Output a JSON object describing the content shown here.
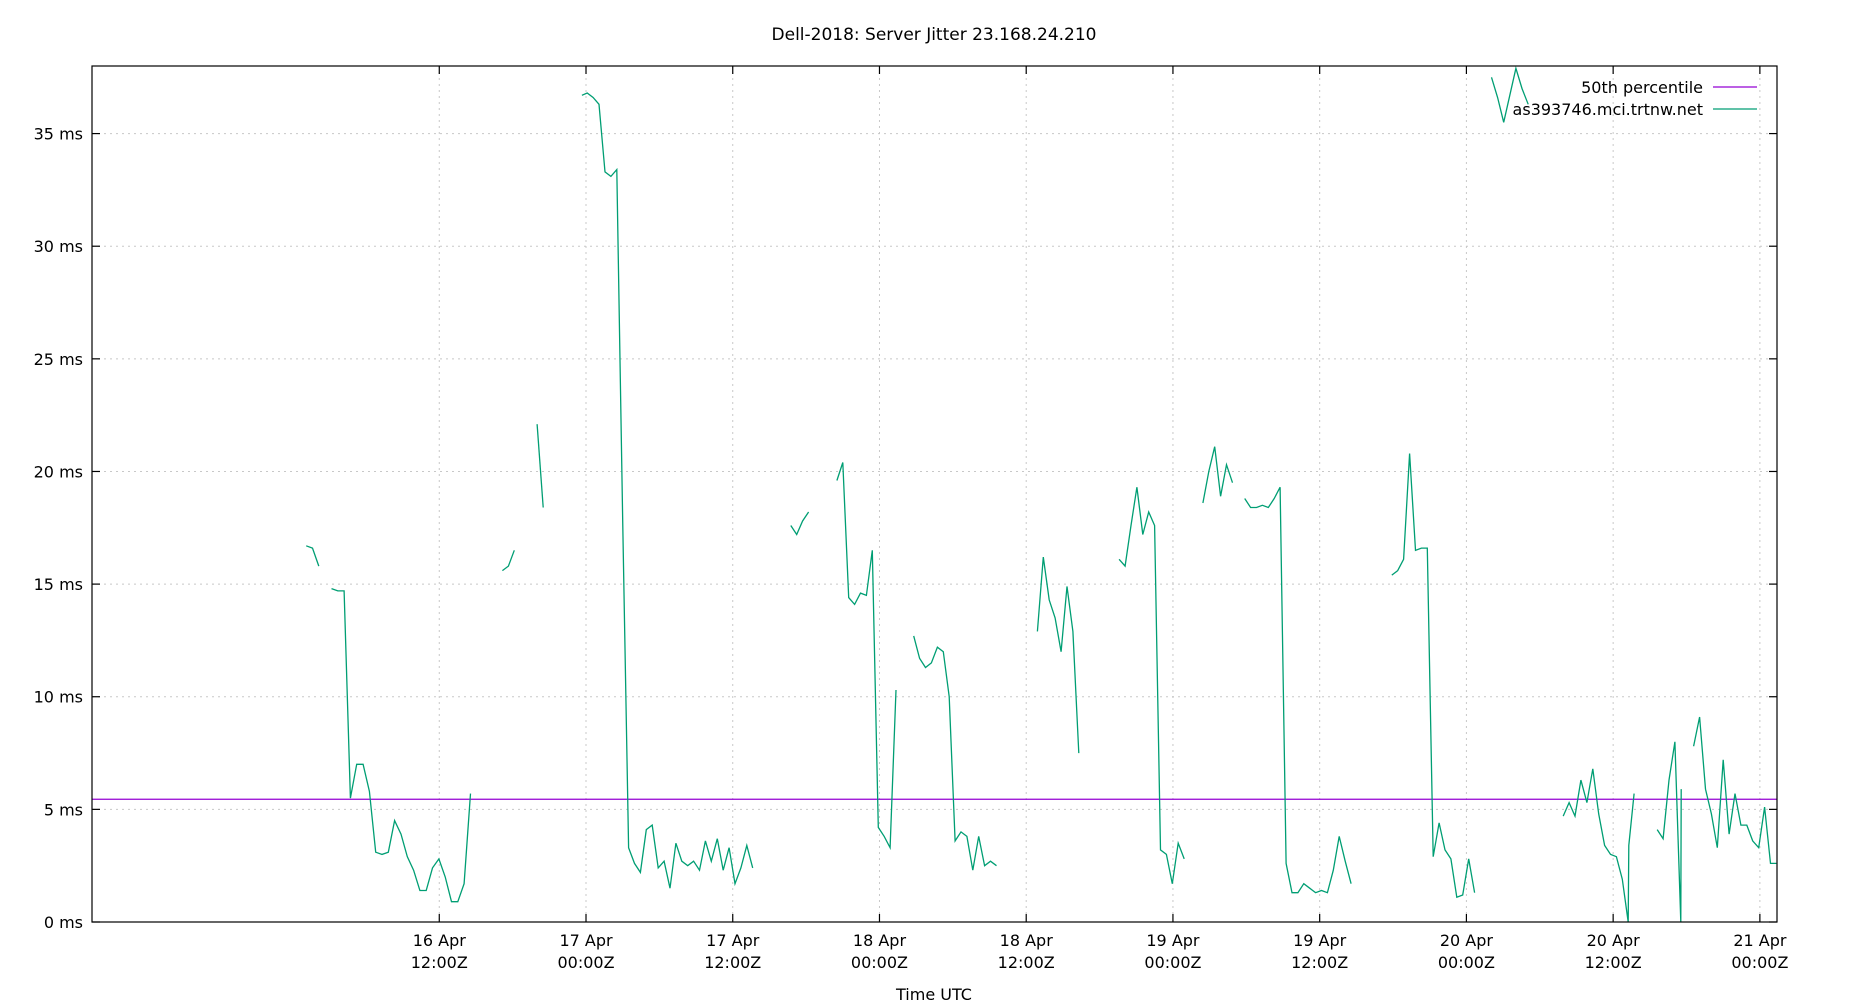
{
  "chart_data": {
    "type": "line",
    "title": "Dell-2018: Server Jitter 23.168.24.210",
    "xlabel": "Time UTC",
    "ylabel": "",
    "ylim": [
      0,
      38
    ],
    "xlim": [
      "2026-04-15 07:36Z",
      "2026-04-21 01:24Z"
    ],
    "grid": true,
    "legend_position": "top-right",
    "y_ticks": [
      {
        "value": 0,
        "label": "0 ms"
      },
      {
        "value": 5,
        "label": "5 ms"
      },
      {
        "value": 10,
        "label": "10 ms"
      },
      {
        "value": 15,
        "label": "15 ms"
      },
      {
        "value": 20,
        "label": "20 ms"
      },
      {
        "value": 25,
        "label": "25 ms"
      },
      {
        "value": 30,
        "label": "30 ms"
      },
      {
        "value": 35,
        "label": "35 ms"
      }
    ],
    "x_ticks": [
      {
        "value": "2026-04-16 12:00Z",
        "line1": "16 Apr",
        "line2": "12:00Z"
      },
      {
        "value": "2026-04-17 00:00Z",
        "line1": "17 Apr",
        "line2": "00:00Z"
      },
      {
        "value": "2026-04-17 12:00Z",
        "line1": "17 Apr",
        "line2": "12:00Z"
      },
      {
        "value": "2026-04-18 00:00Z",
        "line1": "18 Apr",
        "line2": "00:00Z"
      },
      {
        "value": "2026-04-18 12:00Z",
        "line1": "18 Apr",
        "line2": "12:00Z"
      },
      {
        "value": "2026-04-19 00:00Z",
        "line1": "19 Apr",
        "line2": "00:00Z"
      },
      {
        "value": "2026-04-19 12:00Z",
        "line1": "19 Apr",
        "line2": "12:00Z"
      },
      {
        "value": "2026-04-20 00:00Z",
        "line1": "20 Apr",
        "line2": "00:00Z"
      },
      {
        "value": "2026-04-20 12:00Z",
        "line1": "20 Apr",
        "line2": "12:00Z"
      },
      {
        "value": "2026-04-21 00:00Z",
        "line1": "21 Apr",
        "line2": "00:00Z"
      }
    ],
    "reference_lines": [
      {
        "name": "50th percentile",
        "value": 5.45,
        "color": "#9400d3"
      }
    ],
    "series": [
      {
        "name": "as393746.mci.trtnw.net",
        "color": "#009e73",
        "segments": [
          [
            [
              "2026-04-16 01:07Z",
              16.7
            ],
            [
              "2026-04-16 01:38Z",
              16.6
            ],
            [
              "2026-04-16 02:09Z",
              15.8
            ]
          ],
          [
            [
              "2026-04-16 03:11Z",
              14.8
            ],
            [
              "2026-04-16 03:42Z",
              14.7
            ],
            [
              "2026-04-16 04:13Z",
              14.7
            ],
            [
              "2026-04-16 04:44Z",
              5.5
            ],
            [
              "2026-04-16 05:15Z",
              7.0
            ],
            [
              "2026-04-16 05:46Z",
              7.0
            ],
            [
              "2026-04-16 06:17Z",
              5.8
            ],
            [
              "2026-04-16 06:48Z",
              3.1
            ],
            [
              "2026-04-16 07:19Z",
              3.0
            ],
            [
              "2026-04-16 07:50Z",
              3.1
            ],
            [
              "2026-04-16 08:21Z",
              4.5
            ],
            [
              "2026-04-16 08:52Z",
              3.9
            ],
            [
              "2026-04-16 09:23Z",
              2.9
            ],
            [
              "2026-04-16 09:54Z",
              2.3
            ],
            [
              "2026-04-16 10:25Z",
              1.4
            ],
            [
              "2026-04-16 10:56Z",
              1.4
            ],
            [
              "2026-04-16 11:27Z",
              2.4
            ],
            [
              "2026-04-16 11:58Z",
              2.8
            ],
            [
              "2026-04-16 12:29Z",
              2.0
            ],
            [
              "2026-04-16 13:00Z",
              0.9
            ],
            [
              "2026-04-16 13:31Z",
              0.9
            ],
            [
              "2026-04-16 14:02Z",
              1.7
            ],
            [
              "2026-04-16 14:33Z",
              5.7
            ]
          ],
          [
            [
              "2026-04-16 17:10Z",
              15.6
            ],
            [
              "2026-04-16 17:39Z",
              15.8
            ],
            [
              "2026-04-16 18:08Z",
              16.5
            ]
          ],
          [
            [
              "2026-04-16 20:00Z",
              22.1
            ],
            [
              "2026-04-16 20:30Z",
              18.4
            ]
          ],
          [
            [
              "2026-04-16 23:40Z",
              36.7
            ],
            [
              "2026-04-17 00:06Z",
              36.8
            ],
            [
              "2026-04-17 00:35Z",
              36.6
            ],
            [
              "2026-04-17 01:04Z",
              36.3
            ],
            [
              "2026-04-17 01:33Z",
              33.3
            ],
            [
              "2026-04-17 02:02Z",
              33.1
            ],
            [
              "2026-04-17 02:31Z",
              33.4
            ],
            [
              "2026-04-17 03:00Z",
              17.8
            ],
            [
              "2026-04-17 03:29Z",
              3.3
            ],
            [
              "2026-04-17 03:58Z",
              2.6
            ],
            [
              "2026-04-17 04:27Z",
              2.2
            ],
            [
              "2026-04-17 04:56Z",
              4.1
            ],
            [
              "2026-04-17 05:25Z",
              4.3
            ],
            [
              "2026-04-17 05:54Z",
              2.4
            ],
            [
              "2026-04-17 06:23Z",
              2.7
            ],
            [
              "2026-04-17 06:52Z",
              1.5
            ],
            [
              "2026-04-17 07:21Z",
              3.5
            ],
            [
              "2026-04-17 07:50Z",
              2.7
            ],
            [
              "2026-04-17 08:19Z",
              2.5
            ],
            [
              "2026-04-17 08:48Z",
              2.7
            ],
            [
              "2026-04-17 09:17Z",
              2.3
            ],
            [
              "2026-04-17 09:46Z",
              3.6
            ],
            [
              "2026-04-17 10:15Z",
              2.7
            ],
            [
              "2026-04-17 10:44Z",
              3.7
            ],
            [
              "2026-04-17 11:13Z",
              2.3
            ],
            [
              "2026-04-17 11:42Z",
              3.3
            ],
            [
              "2026-04-17 12:11Z",
              1.7
            ],
            [
              "2026-04-17 12:40Z",
              2.4
            ],
            [
              "2026-04-17 13:09Z",
              3.4
            ],
            [
              "2026-04-17 13:38Z",
              2.4
            ]
          ],
          [
            [
              "2026-04-17 16:45Z",
              17.6
            ],
            [
              "2026-04-17 17:14Z",
              17.2
            ],
            [
              "2026-04-17 17:43Z",
              17.8
            ],
            [
              "2026-04-17 18:12Z",
              18.2
            ]
          ],
          [
            [
              "2026-04-17 20:31Z",
              19.6
            ],
            [
              "2026-04-17 21:00Z",
              20.4
            ],
            [
              "2026-04-17 21:29Z",
              14.4
            ],
            [
              "2026-04-17 21:58Z",
              14.1
            ],
            [
              "2026-04-17 22:27Z",
              14.6
            ],
            [
              "2026-04-17 22:56Z",
              14.5
            ],
            [
              "2026-04-17 23:25Z",
              16.5
            ],
            [
              "2026-04-17 23:54Z",
              4.2
            ],
            [
              "2026-04-18 00:23Z",
              3.8
            ],
            [
              "2026-04-18 00:52Z",
              3.3
            ],
            [
              "2026-04-18 01:21Z",
              10.3
            ]
          ],
          [
            [
              "2026-04-18 02:48Z",
              12.7
            ],
            [
              "2026-04-18 03:17Z",
              11.7
            ],
            [
              "2026-04-18 03:46Z",
              11.3
            ],
            [
              "2026-04-18 04:15Z",
              11.5
            ],
            [
              "2026-04-18 04:44Z",
              12.2
            ],
            [
              "2026-04-18 05:13Z",
              12.0
            ],
            [
              "2026-04-18 05:42Z",
              10.0
            ],
            [
              "2026-04-18 06:11Z",
              3.6
            ],
            [
              "2026-04-18 06:40Z",
              4.0
            ],
            [
              "2026-04-18 07:09Z",
              3.8
            ],
            [
              "2026-04-18 07:38Z",
              2.3
            ],
            [
              "2026-04-18 08:07Z",
              3.8
            ],
            [
              "2026-04-18 08:36Z",
              2.5
            ],
            [
              "2026-04-18 09:05Z",
              2.7
            ],
            [
              "2026-04-18 09:34Z",
              2.5
            ]
          ],
          [
            [
              "2026-04-18 12:55Z",
              12.9
            ],
            [
              "2026-04-18 13:24Z",
              16.2
            ],
            [
              "2026-04-18 13:53Z",
              14.3
            ],
            [
              "2026-04-18 14:22Z",
              13.5
            ],
            [
              "2026-04-18 14:51Z",
              12.0
            ],
            [
              "2026-04-18 15:20Z",
              14.9
            ],
            [
              "2026-04-18 15:49Z",
              12.9
            ],
            [
              "2026-04-18 16:18Z",
              7.5
            ]
          ],
          [
            [
              "2026-04-18 19:36Z",
              16.1
            ],
            [
              "2026-04-18 20:05Z",
              15.8
            ],
            [
              "2026-04-18 20:34Z",
              17.6
            ],
            [
              "2026-04-18 21:03Z",
              19.3
            ],
            [
              "2026-04-18 21:32Z",
              17.2
            ],
            [
              "2026-04-18 22:01Z",
              18.2
            ],
            [
              "2026-04-18 22:30Z",
              17.6
            ],
            [
              "2026-04-18 22:59Z",
              3.2
            ],
            [
              "2026-04-18 23:28Z",
              3.0
            ],
            [
              "2026-04-18 23:57Z",
              1.7
            ],
            [
              "2026-04-19 00:26Z",
              3.5
            ],
            [
              "2026-04-19 00:55Z",
              2.8
            ]
          ],
          [
            [
              "2026-04-19 02:27Z",
              18.6
            ],
            [
              "2026-04-19 02:56Z",
              20.0
            ],
            [
              "2026-04-19 03:25Z",
              21.1
            ],
            [
              "2026-04-19 03:54Z",
              18.9
            ],
            [
              "2026-04-19 04:23Z",
              20.3
            ],
            [
              "2026-04-19 04:52Z",
              19.5
            ]
          ],
          [
            [
              "2026-04-19 05:52Z",
              18.8
            ],
            [
              "2026-04-19 06:21Z",
              18.4
            ],
            [
              "2026-04-19 06:50Z",
              18.4
            ],
            [
              "2026-04-19 07:19Z",
              18.5
            ],
            [
              "2026-04-19 07:48Z",
              18.4
            ],
            [
              "2026-04-19 08:17Z",
              18.8
            ],
            [
              "2026-04-19 08:46Z",
              19.3
            ],
            [
              "2026-04-19 09:15Z",
              2.6
            ],
            [
              "2026-04-19 09:44Z",
              1.3
            ],
            [
              "2026-04-19 10:13Z",
              1.3
            ],
            [
              "2026-04-19 10:42Z",
              1.7
            ],
            [
              "2026-04-19 11:11Z",
              1.5
            ],
            [
              "2026-04-19 11:40Z",
              1.3
            ],
            [
              "2026-04-19 12:09Z",
              1.4
            ],
            [
              "2026-04-19 12:38Z",
              1.3
            ],
            [
              "2026-04-19 13:07Z",
              2.3
            ],
            [
              "2026-04-19 13:36Z",
              3.8
            ],
            [
              "2026-04-19 14:05Z",
              2.7
            ],
            [
              "2026-04-19 14:34Z",
              1.7
            ]
          ],
          [
            [
              "2026-04-19 17:54Z",
              15.4
            ],
            [
              "2026-04-19 18:23Z",
              15.6
            ],
            [
              "2026-04-19 18:52Z",
              16.1
            ],
            [
              "2026-04-19 19:21Z",
              20.8
            ],
            [
              "2026-04-19 19:50Z",
              16.5
            ],
            [
              "2026-04-19 20:19Z",
              16.6
            ],
            [
              "2026-04-19 20:48Z",
              16.6
            ],
            [
              "2026-04-19 21:17Z",
              2.9
            ],
            [
              "2026-04-19 21:46Z",
              4.4
            ],
            [
              "2026-04-19 22:15Z",
              3.2
            ],
            [
              "2026-04-19 22:44Z",
              2.8
            ],
            [
              "2026-04-19 23:13Z",
              1.1
            ],
            [
              "2026-04-19 23:42Z",
              1.2
            ],
            [
              "2026-04-20 00:11Z",
              2.8
            ],
            [
              "2026-04-20 00:40Z",
              1.3
            ]
          ],
          [
            [
              "2026-04-20 02:03Z",
              37.5
            ],
            [
              "2026-04-20 02:33Z",
              36.6
            ],
            [
              "2026-04-20 03:03Z",
              35.5
            ],
            [
              "2026-04-20 03:33Z",
              36.7
            ],
            [
              "2026-04-20 04:03Z",
              37.9
            ],
            [
              "2026-04-20 04:33Z",
              37.0
            ],
            [
              "2026-04-20 05:03Z",
              36.3
            ]
          ],
          [
            [
              "2026-04-20 07:55Z",
              4.7
            ],
            [
              "2026-04-20 08:24Z",
              5.3
            ],
            [
              "2026-04-20 08:53Z",
              4.7
            ],
            [
              "2026-04-20 09:22Z",
              6.3
            ],
            [
              "2026-04-20 09:51Z",
              5.3
            ],
            [
              "2026-04-20 10:20Z",
              6.8
            ],
            [
              "2026-04-20 10:49Z",
              4.8
            ],
            [
              "2026-04-20 11:18Z",
              3.4
            ],
            [
              "2026-04-20 11:47Z",
              3.0
            ],
            [
              "2026-04-20 12:16Z",
              2.9
            ],
            [
              "2026-04-20 12:45Z",
              1.9
            ],
            [
              "2026-04-20 13:14Z",
              0.0
            ],
            [
              "2026-04-20 13:17Z",
              3.4
            ],
            [
              "2026-04-20 13:43Z",
              5.7
            ]
          ],
          [
            [
              "2026-04-20 15:36Z",
              4.1
            ],
            [
              "2026-04-20 16:05Z",
              3.7
            ],
            [
              "2026-04-20 16:34Z",
              6.3
            ],
            [
              "2026-04-20 17:03Z",
              8.0
            ],
            [
              "2026-04-20 17:32Z",
              0.0
            ],
            [
              "2026-04-20 17:34Z",
              5.9
            ]
          ],
          [
            [
              "2026-04-20 18:35Z",
              7.8
            ],
            [
              "2026-04-20 19:04Z",
              9.1
            ],
            [
              "2026-04-20 19:33Z",
              5.9
            ],
            [
              "2026-04-20 20:02Z",
              4.8
            ],
            [
              "2026-04-20 20:31Z",
              3.3
            ],
            [
              "2026-04-20 21:00Z",
              7.2
            ],
            [
              "2026-04-20 21:29Z",
              3.9
            ],
            [
              "2026-04-20 21:58Z",
              5.7
            ],
            [
              "2026-04-20 22:27Z",
              4.3
            ],
            [
              "2026-04-20 22:56Z",
              4.3
            ],
            [
              "2026-04-20 23:25Z",
              3.6
            ],
            [
              "2026-04-20 23:54Z",
              3.3
            ],
            [
              "2026-04-21 00:23Z",
              5.1
            ],
            [
              "2026-04-21 00:52Z",
              2.6
            ],
            [
              "2026-04-21 01:21Z",
              2.6
            ]
          ]
        ]
      }
    ]
  }
}
